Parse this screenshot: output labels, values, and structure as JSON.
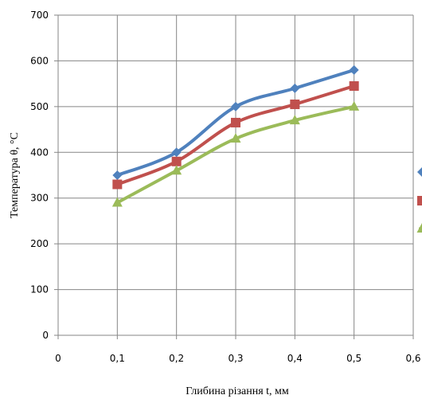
{
  "chart_data": {
    "type": "line",
    "title": "",
    "xlabel": "Глибина різання t, мм",
    "ylabel": "Температура θ, °C",
    "xlim": [
      0,
      0.6
    ],
    "ylim": [
      0,
      700
    ],
    "grid": true,
    "x_ticks": [
      "0",
      "0,1",
      "0,2",
      "0,3",
      "0,4",
      "0,5",
      "0,6"
    ],
    "y_ticks": [
      "0",
      "100",
      "200",
      "300",
      "400",
      "500",
      "600",
      "700"
    ],
    "x": [
      0.1,
      0.2,
      0.3,
      0.4,
      0.5
    ],
    "series": [
      {
        "values": [
          350,
          400,
          500,
          540,
          580
        ],
        "color": "#4F81BD",
        "marker": "diamond"
      },
      {
        "values": [
          330,
          380,
          465,
          505,
          545
        ],
        "color": "#C0504D",
        "marker": "square"
      },
      {
        "values": [
          290,
          360,
          430,
          470,
          500
        ],
        "color": "#9BBB59",
        "marker": "triangle"
      }
    ]
  }
}
